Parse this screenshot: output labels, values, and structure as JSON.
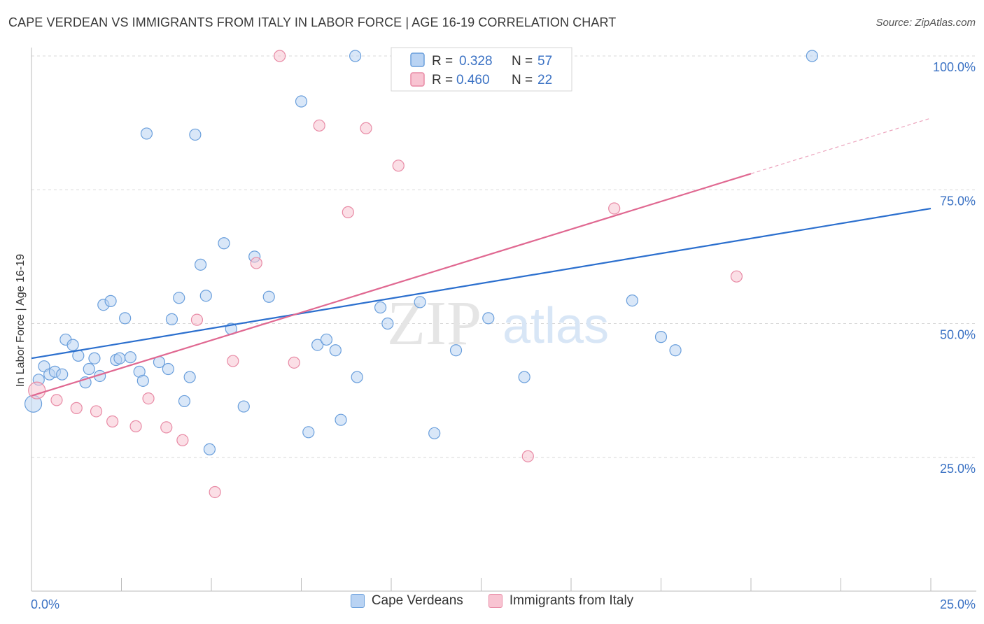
{
  "title": "CAPE VERDEAN VS IMMIGRANTS FROM ITALY IN LABOR FORCE | AGE 16-19 CORRELATION CHART",
  "source": "Source: ZipAtlas.com",
  "watermark": {
    "zip": "ZIP",
    "atlas": "atlas"
  },
  "stats_box": [
    {
      "r_label": "R = ",
      "r_value": "0.328",
      "n_label": "N = ",
      "n_value": "57"
    },
    {
      "r_label": "R = ",
      "r_value": "0.460",
      "n_label": "N = ",
      "n_value": "22"
    }
  ],
  "legend": [
    {
      "label": "Cape Verdeans"
    },
    {
      "label": "Immigrants from Italy"
    }
  ],
  "colors": {
    "blue_fill": "#b9d3f3",
    "blue_stroke": "#6a9fdc",
    "blue_line": "#2b6fce",
    "pink_fill": "#f8c4d2",
    "pink_stroke": "#e88aa5",
    "pink_line": "#e06891",
    "axis_text": "#3b72c4",
    "grid": "#d8d8d8"
  },
  "chart_data": {
    "type": "scatter",
    "ylabel": "In Labor Force | Age 16-19",
    "xlim": [
      0,
      25
    ],
    "ylim": [
      0,
      100
    ],
    "x_tick_labels": {
      "left": "0.0%",
      "right": "25.0%"
    },
    "y_ticks": [
      {
        "value": 25,
        "label": "25.0%"
      },
      {
        "value": 50,
        "label": "50.0%"
      },
      {
        "value": 75,
        "label": "75.0%"
      },
      {
        "value": 100,
        "label": "100.0%"
      }
    ],
    "grid": true,
    "series": [
      {
        "name": "Cape Verdeans",
        "color": "blue",
        "trend": {
          "x0": 0,
          "y0": 43.5,
          "x1": 25,
          "y1": 71.5,
          "dashed_to": 25
        },
        "points": [
          [
            0.05,
            35
          ],
          [
            0.2,
            39.5
          ],
          [
            0.35,
            42
          ],
          [
            0.5,
            40.5
          ],
          [
            0.65,
            41
          ],
          [
            0.85,
            40.5
          ],
          [
            0.95,
            47
          ],
          [
            1.15,
            46
          ],
          [
            1.3,
            44
          ],
          [
            1.5,
            39
          ],
          [
            1.6,
            41.5
          ],
          [
            1.75,
            43.5
          ],
          [
            1.9,
            40.2
          ],
          [
            2.0,
            53.5
          ],
          [
            2.2,
            54.2
          ],
          [
            2.35,
            43.2
          ],
          [
            2.45,
            43.5
          ],
          [
            2.6,
            51
          ],
          [
            2.75,
            43.7
          ],
          [
            3.0,
            41
          ],
          [
            3.1,
            39.3
          ],
          [
            3.2,
            85.5
          ],
          [
            3.55,
            42.8
          ],
          [
            3.8,
            41.5
          ],
          [
            3.9,
            50.8
          ],
          [
            4.1,
            54.8
          ],
          [
            4.25,
            35.5
          ],
          [
            4.4,
            40
          ],
          [
            4.55,
            85.3
          ],
          [
            4.7,
            61
          ],
          [
            4.85,
            55.2
          ],
          [
            4.95,
            26.5
          ],
          [
            5.35,
            65
          ],
          [
            5.55,
            49
          ],
          [
            5.9,
            34.5
          ],
          [
            6.2,
            62.5
          ],
          [
            6.6,
            55
          ],
          [
            7.5,
            91.5
          ],
          [
            7.7,
            29.7
          ],
          [
            7.95,
            46
          ],
          [
            8.2,
            47
          ],
          [
            8.45,
            45
          ],
          [
            8.6,
            32
          ],
          [
            9.0,
            100
          ],
          [
            9.05,
            40
          ],
          [
            9.7,
            53
          ],
          [
            9.9,
            50
          ],
          [
            10.8,
            54
          ],
          [
            11.2,
            29.5
          ],
          [
            11.8,
            45
          ],
          [
            12.7,
            51
          ],
          [
            13.2,
            100
          ],
          [
            13.7,
            40
          ],
          [
            16.7,
            54.3
          ],
          [
            17.5,
            47.5
          ],
          [
            17.9,
            45
          ],
          [
            21.7,
            100
          ]
        ]
      },
      {
        "name": "Immigrants from Italy",
        "color": "pink",
        "trend": {
          "x0": 0,
          "y0": 36.5,
          "x1": 20,
          "y1": 78,
          "dashed_to": 25
        },
        "points": [
          [
            0.15,
            37.5
          ],
          [
            0.7,
            35.7
          ],
          [
            1.25,
            34.2
          ],
          [
            1.8,
            33.6
          ],
          [
            2.25,
            31.7
          ],
          [
            2.9,
            30.8
          ],
          [
            3.25,
            36
          ],
          [
            3.75,
            30.6
          ],
          [
            4.2,
            28.2
          ],
          [
            4.6,
            50.7
          ],
          [
            5.1,
            18.5
          ],
          [
            5.6,
            43
          ],
          [
            6.25,
            61.3
          ],
          [
            6.9,
            100
          ],
          [
            7.3,
            42.7
          ],
          [
            8.0,
            87
          ],
          [
            8.8,
            70.8
          ],
          [
            9.3,
            86.5
          ],
          [
            10.2,
            79.5
          ],
          [
            13.8,
            25.2
          ],
          [
            16.2,
            71.5
          ],
          [
            19.6,
            58.8
          ]
        ]
      }
    ]
  }
}
